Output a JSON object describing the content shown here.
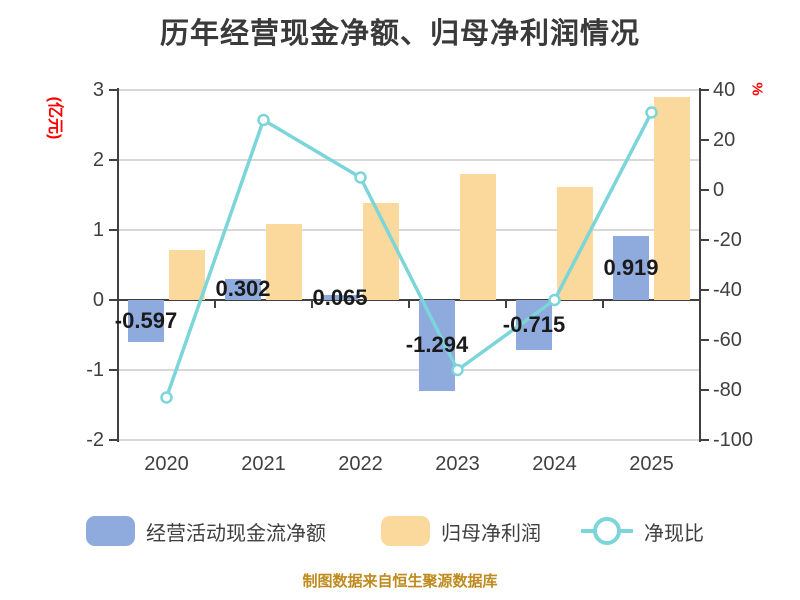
{
  "chart_data": {
    "type": "bar",
    "combo": "dual-axis bar + line",
    "title": "历年经营现金净额、归母净利润情况",
    "categories": [
      "2020",
      "2021",
      "2022",
      "2023",
      "2024",
      "2025"
    ],
    "series": [
      {
        "name": "经营活动现金流净额",
        "type": "bar",
        "y_axis": "left",
        "color": "#8FAADC",
        "values": [
          -0.597,
          0.302,
          0.065,
          -1.294,
          -0.715,
          0.919
        ],
        "data_labels": [
          "-0.597",
          "0.302",
          "0.065",
          "-1.294",
          "-0.715",
          "0.919"
        ]
      },
      {
        "name": "归母净利润",
        "type": "bar",
        "y_axis": "left",
        "color": "#FBD89B",
        "values": [
          0.72,
          1.08,
          1.38,
          1.8,
          1.62,
          2.9
        ]
      },
      {
        "name": "净现比",
        "type": "line",
        "y_axis": "right",
        "color": "#7CD5D8",
        "marker": "white-circle",
        "values": [
          -83,
          28,
          5,
          -72,
          -44,
          31
        ]
      }
    ],
    "left_axis": {
      "label": "(亿元)",
      "label_color": "#FE0000",
      "min": -2,
      "max": 3,
      "ticks": [
        3,
        2,
        1,
        0,
        -1,
        -2
      ]
    },
    "right_axis": {
      "label": "%",
      "label_color": "#FE0000",
      "min": -100,
      "max": 40,
      "ticks": [
        40,
        20,
        0,
        -20,
        -40,
        -60,
        -80,
        -100
      ]
    },
    "grid": "horizontal light gray, dark zero line",
    "legend_position": "bottom",
    "source_note": "制图数据来自恒生聚源数据库"
  },
  "style_colors": {
    "title": "#3A3A3A",
    "axis": "#404040",
    "grid": "#D8D8D8",
    "tick_label": "#404040",
    "data_label": "#1A1A1A",
    "legend_text": "#3F3F3F",
    "footer": "#BF8A1E",
    "background": "#FFFFFF"
  }
}
